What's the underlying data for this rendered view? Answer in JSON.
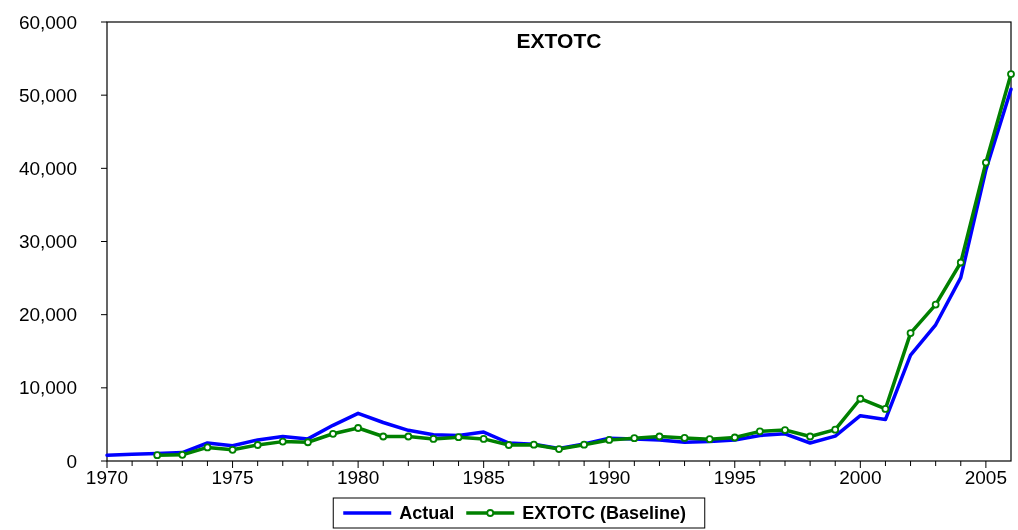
{
  "chart_data": {
    "type": "line",
    "title": "EXTOTC",
    "xlim": [
      1970,
      2006
    ],
    "xticks": [
      1970,
      {
        "value": 1971,
        "label": null
      },
      {
        "value": 1972,
        "label": null
      },
      {
        "value": 1973,
        "label": null
      },
      {
        "value": 1974,
        "label": null
      },
      1975,
      {
        "value": 1976,
        "label": null
      },
      {
        "value": 1977,
        "label": null
      },
      {
        "value": 1978,
        "label": null
      },
      {
        "value": 1979,
        "label": null
      },
      1980,
      {
        "value": 1981,
        "label": null
      },
      {
        "value": 1982,
        "label": null
      },
      {
        "value": 1983,
        "label": null
      },
      {
        "value": 1984,
        "label": null
      },
      1985,
      {
        "value": 1986,
        "label": null
      },
      {
        "value": 1987,
        "label": null
      },
      {
        "value": 1988,
        "label": null
      },
      {
        "value": 1989,
        "label": null
      },
      1990,
      {
        "value": 1991,
        "label": null
      },
      {
        "value": 1992,
        "label": null
      },
      {
        "value": 1993,
        "label": null
      },
      {
        "value": 1994,
        "label": null
      },
      1995,
      {
        "value": 1996,
        "label": null
      },
      {
        "value": 1997,
        "label": null
      },
      {
        "value": 1998,
        "label": null
      },
      {
        "value": 1999,
        "label": null
      },
      2000,
      {
        "value": 2001,
        "label": null
      },
      {
        "value": 2002,
        "label": null
      },
      {
        "value": 2003,
        "label": null
      },
      {
        "value": 2004,
        "label": null
      },
      2005
    ],
    "ylim": [
      0,
      60000
    ],
    "yticks": [
      0,
      {
        "value": 10000,
        "label": "10,000"
      },
      {
        "value": 20000,
        "label": "20,000"
      },
      {
        "value": 30000,
        "label": "30,000"
      },
      {
        "value": 40000,
        "label": "40,000"
      },
      {
        "value": 50000,
        "label": "50,000"
      },
      {
        "value": 60000,
        "label": "60,000"
      }
    ],
    "x": [
      1970,
      1971,
      1972,
      1973,
      1974,
      1975,
      1976,
      1977,
      1978,
      1979,
      1980,
      1981,
      1982,
      1983,
      1984,
      1985,
      1986,
      1987,
      1988,
      1989,
      1990,
      1991,
      1992,
      1993,
      1994,
      1995,
      1996,
      1997,
      1998,
      1999,
      2000,
      2001,
      2002,
      2003,
      2004,
      2005,
      2006
    ],
    "series": [
      {
        "name": "Actual",
        "color": "#0000ff",
        "marker": "none",
        "values": [
          790,
          930,
          1020,
          1160,
          2460,
          2090,
          2880,
          3350,
          3020,
          4880,
          6510,
          5260,
          4190,
          3580,
          3490,
          3950,
          2460,
          2280,
          1720,
          2330,
          3120,
          3020,
          2880,
          2560,
          2650,
          2880,
          3490,
          3720,
          2460,
          3400,
          6190,
          5670,
          14480,
          18620,
          25060,
          39800,
          50810
        ]
      },
      {
        "name": "EXTOTC (Baseline)",
        "color": "#008000",
        "marker": "circle",
        "values": [
          null,
          null,
          790,
          840,
          1860,
          1530,
          2190,
          2650,
          2560,
          3720,
          4510,
          3350,
          3350,
          3020,
          3260,
          3020,
          2190,
          2230,
          1630,
          2230,
          2880,
          3120,
          3350,
          3160,
          2980,
          3210,
          4050,
          4230,
          3350,
          4280,
          8510,
          7120,
          17480,
          21380,
          27130,
          40790,
          52880
        ]
      }
    ],
    "grid": false,
    "legend": "bottom",
    "line_style": "solid"
  }
}
